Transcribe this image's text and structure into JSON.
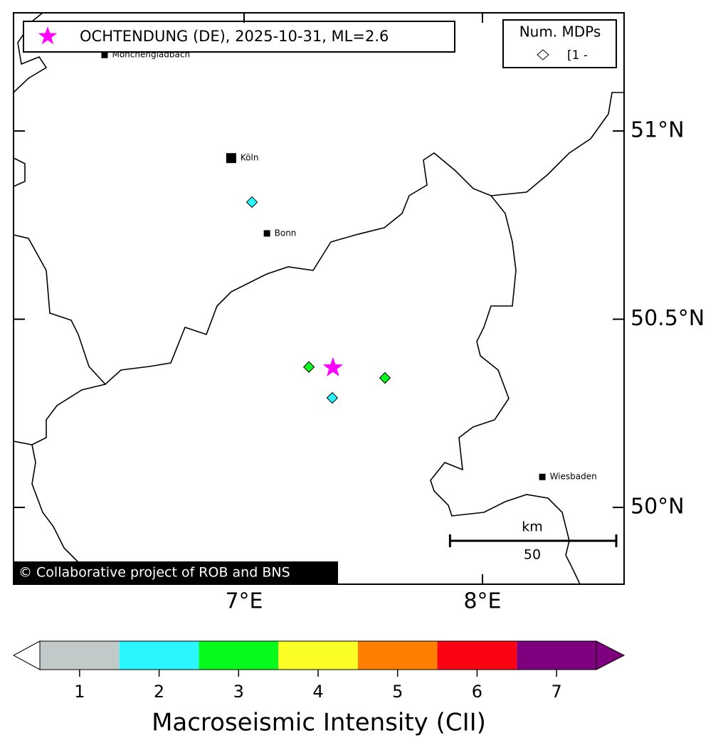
{
  "map": {
    "xlim": [
      6.033,
      8.594
    ],
    "ylim": [
      49.796,
      51.314
    ],
    "xticks": [
      {
        "value": 7,
        "label": "7°E"
      },
      {
        "value": 8,
        "label": "8°E"
      }
    ],
    "yticks": [
      {
        "value": 51,
        "label": "51°N"
      },
      {
        "value": 50.5,
        "label": "50.5°N"
      },
      {
        "value": 50,
        "label": "50°N"
      }
    ],
    "legend": {
      "label": "OCHTENDUNG (DE), 2025-10-31, ML=2.6",
      "color": "#ff00ff"
    },
    "epicenter": {
      "lon": 7.373,
      "lat": 50.371
    },
    "mdp_legend": {
      "title": "Num. MDPs",
      "entry": "[1 -"
    },
    "points": [
      {
        "lon": 7.033,
        "lat": 50.811,
        "intensity": 2
      },
      {
        "lon": 7.272,
        "lat": 50.373,
        "intensity": 3
      },
      {
        "lon": 7.591,
        "lat": 50.344,
        "intensity": 3
      },
      {
        "lon": 7.37,
        "lat": 50.291,
        "intensity": 2
      }
    ],
    "cities": [
      {
        "name": "Mönchengladbach",
        "lon": 6.415,
        "lat": 51.202
      },
      {
        "name": "Köln",
        "lon": 6.946,
        "lat": 50.928
      },
      {
        "name": "Bonn",
        "lon": 7.096,
        "lat": 50.728
      },
      {
        "name": "Wiesbaden",
        "lon": 8.251,
        "lat": 50.081
      }
    ],
    "scale_bar": {
      "unit": "km",
      "length": 50
    },
    "credit": "© Collaborative project of ROB and BNS"
  },
  "colorbar": {
    "lim": [
      0.5,
      7.5
    ],
    "ticks": [
      1,
      2,
      3,
      4,
      5,
      6,
      7
    ],
    "colors": [
      "#c1c9c9",
      "#29f6ff",
      "#06fb1d",
      "#fbff24",
      "#ff8000",
      "#fb0313",
      "#7f007f"
    ],
    "label": "Macroseismic Intensity (CII)"
  }
}
